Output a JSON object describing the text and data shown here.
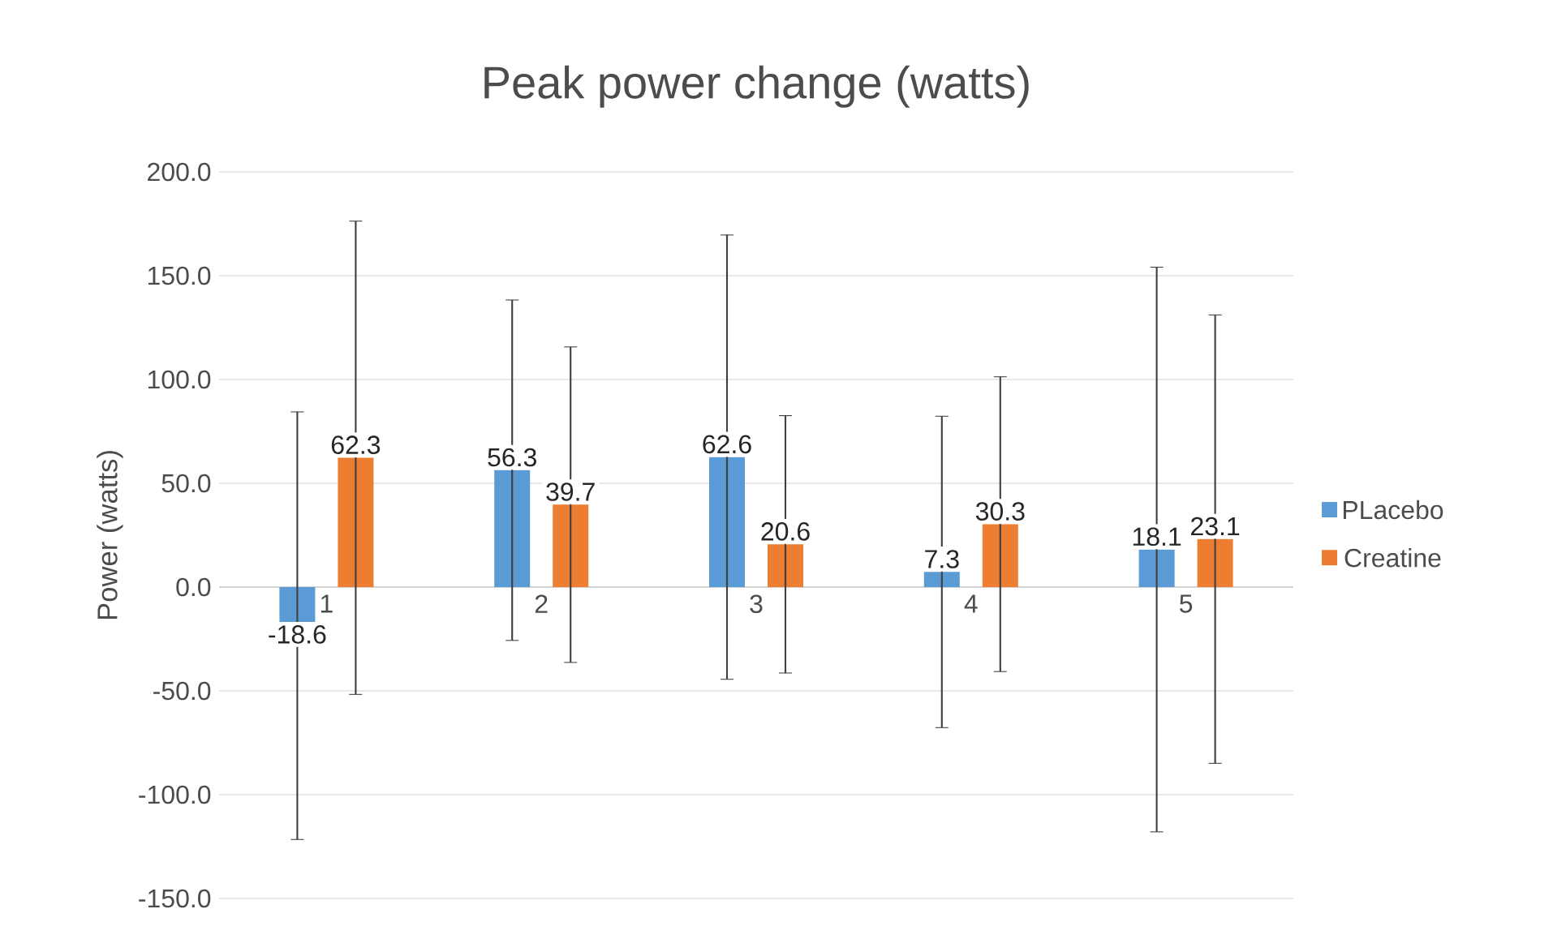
{
  "chart_data": {
    "type": "bar",
    "title": "Peak power change (watts)",
    "ylabel": "Power (watts)",
    "categories": [
      "1",
      "2",
      "3",
      "4",
      "5"
    ],
    "series": [
      {
        "name": "PLacebo",
        "color": "#5b9bd5",
        "values": [
          -18.6,
          56.3,
          62.6,
          7.3,
          18.1
        ],
        "errors": [
          103,
          82,
          107,
          75,
          136
        ]
      },
      {
        "name": "Creatine",
        "color": "#ed7d31",
        "values": [
          62.3,
          39.7,
          20.6,
          30.3,
          23.1
        ],
        "errors": [
          114,
          76,
          62,
          71,
          108
        ]
      }
    ],
    "ylim": [
      -150,
      200
    ],
    "yticks": [
      {
        "value": -150,
        "label": "-150.0"
      },
      {
        "value": -100,
        "label": "-100.0"
      },
      {
        "value": -50,
        "label": "-50.0"
      },
      {
        "value": 0,
        "label": "0.0"
      },
      {
        "value": 50,
        "label": "50.0"
      },
      {
        "value": 100,
        "label": "100.0"
      },
      {
        "value": 150,
        "label": "150.0"
      },
      {
        "value": 200,
        "label": "200.0"
      }
    ],
    "grid": "y",
    "legend": "right",
    "data_labels": true
  }
}
